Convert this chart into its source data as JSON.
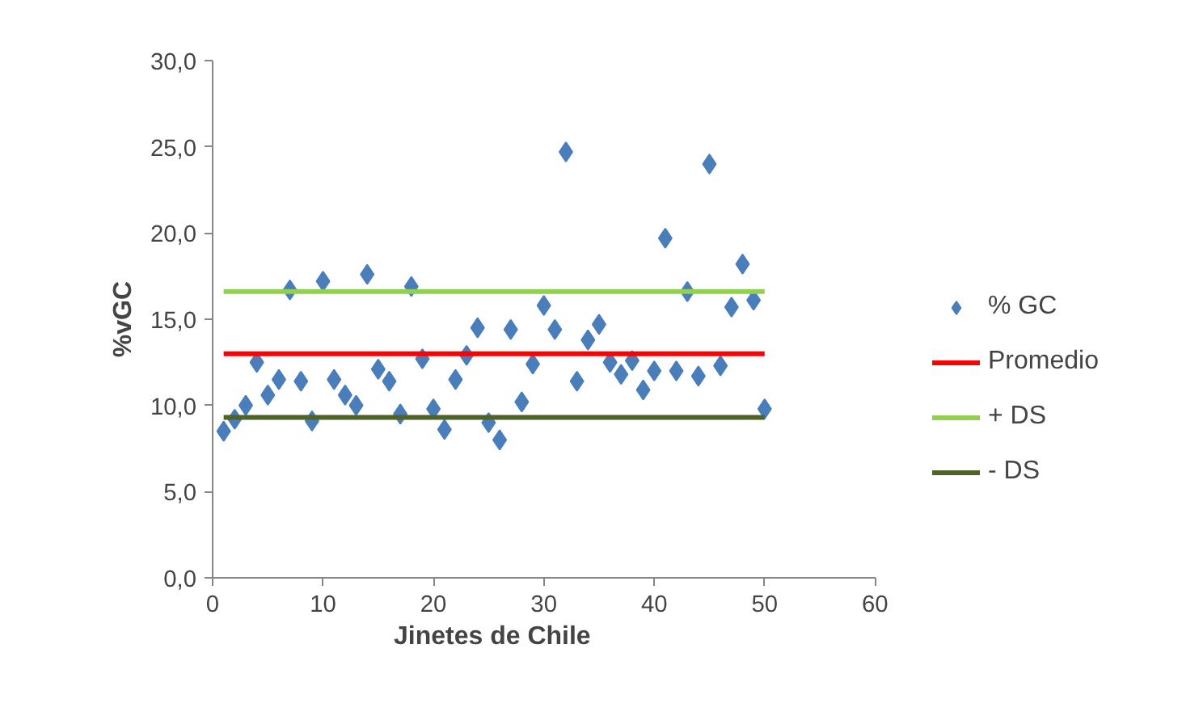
{
  "chart_data": {
    "type": "scatter",
    "xlabel": "Jinetes de Chile",
    "ylabel": "%vGC",
    "xlim": [
      0,
      60
    ],
    "xticks": [
      0,
      10,
      20,
      30,
      40,
      50,
      60
    ],
    "ylim": [
      0,
      30
    ],
    "yticks": [
      {
        "value": 0,
        "label": "0,0"
      },
      {
        "value": 5,
        "label": "5,0"
      },
      {
        "value": 10,
        "label": "10,0"
      },
      {
        "value": 15,
        "label": "15,0"
      },
      {
        "value": 20,
        "label": "20,0"
      },
      {
        "value": 25,
        "label": "25,0"
      },
      {
        "value": 30,
        "label": "30,0"
      }
    ],
    "grid": false,
    "legend": "right",
    "series": [
      {
        "name": "% GC",
        "marker": "diamond",
        "color": "#4a7ebb",
        "x": [
          1,
          2,
          3,
          4,
          5,
          6,
          7,
          8,
          9,
          10,
          11,
          12,
          13,
          14,
          15,
          16,
          17,
          18,
          19,
          20,
          21,
          22,
          23,
          24,
          25,
          26,
          27,
          28,
          29,
          30,
          31,
          32,
          33,
          34,
          35,
          36,
          37,
          38,
          39,
          40,
          41,
          42,
          43,
          44,
          45,
          46,
          47,
          48,
          49,
          50
        ],
        "values": [
          8.5,
          9.2,
          10.0,
          12.5,
          10.6,
          11.5,
          16.7,
          11.4,
          9.1,
          17.2,
          11.5,
          10.6,
          10.0,
          17.6,
          12.1,
          11.4,
          9.5,
          16.9,
          12.7,
          9.8,
          8.6,
          11.5,
          12.9,
          14.5,
          9.0,
          8.0,
          14.4,
          10.2,
          12.4,
          15.8,
          14.4,
          24.7,
          11.4,
          13.8,
          14.7,
          12.5,
          11.8,
          12.6,
          10.9,
          12.0,
          19.7,
          12.0,
          16.6,
          11.7,
          24.0,
          12.3,
          15.7,
          18.2,
          16.1,
          9.8
        ]
      },
      {
        "name": "Promedio",
        "type": "line",
        "color": "#ff0000",
        "x": [
          1,
          50
        ],
        "values": [
          13.0,
          13.0
        ]
      },
      {
        "name": "+ DS",
        "type": "line",
        "color": "#92d050",
        "x": [
          1,
          50
        ],
        "values": [
          16.6,
          16.6
        ]
      },
      {
        "name": "- DS",
        "type": "line",
        "color": "#4f6228",
        "x": [
          1,
          50
        ],
        "values": [
          9.3,
          9.3
        ]
      }
    ]
  }
}
